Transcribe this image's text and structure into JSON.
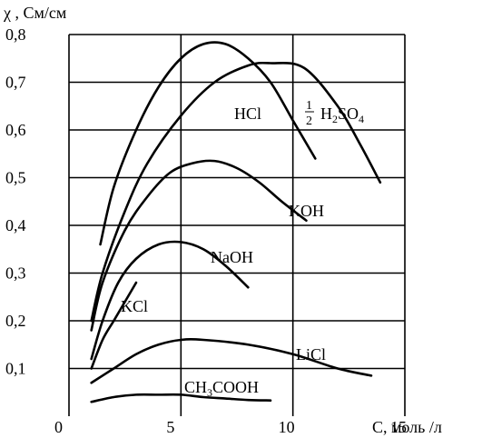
{
  "chart_data": {
    "type": "line",
    "ylabel": "χ , См/см",
    "xlabel": "C, моль /л",
    "xlim": [
      0,
      15
    ],
    "ylim": [
      0,
      0.8
    ],
    "grid": true,
    "x_ticks": [
      "0",
      "5",
      "10",
      "15"
    ],
    "y_ticks": [
      "0,1",
      "0,2",
      "0,3",
      "0,4",
      "0,5",
      "0,6",
      "0,7",
      "0,8"
    ],
    "series": [
      {
        "name": "HCl",
        "x": [
          1.4,
          2.0,
          3.0,
          4.0,
          5.0,
          6.0,
          7.0,
          8.0,
          9.0,
          10.0,
          11.0
        ],
        "y": [
          0.36,
          0.48,
          0.6,
          0.69,
          0.75,
          0.78,
          0.78,
          0.75,
          0.7,
          0.62,
          0.54
        ]
      },
      {
        "name": "½ H₂SO₄",
        "x": [
          1.0,
          1.5,
          2.5,
          3.5,
          5.0,
          6.5,
          8.0,
          9.0,
          10.5,
          12.0,
          13.0,
          13.9
        ],
        "y": [
          0.2,
          0.3,
          0.43,
          0.53,
          0.63,
          0.7,
          0.735,
          0.74,
          0.73,
          0.65,
          0.57,
          0.49
        ]
      },
      {
        "name": "KOH",
        "x": [
          1.0,
          1.5,
          2.5,
          3.5,
          4.5,
          5.5,
          6.5,
          7.5,
          8.5,
          9.5,
          10.6
        ],
        "y": [
          0.18,
          0.28,
          0.39,
          0.46,
          0.51,
          0.53,
          0.535,
          0.52,
          0.49,
          0.45,
          0.41
        ]
      },
      {
        "name": "NaOH",
        "x": [
          1.0,
          1.5,
          2.2,
          3.0,
          4.0,
          5.0,
          6.0,
          7.0,
          8.0
        ],
        "y": [
          0.12,
          0.2,
          0.28,
          0.33,
          0.36,
          0.365,
          0.35,
          0.315,
          0.27
        ]
      },
      {
        "name": "KCl",
        "x": [
          1.0,
          1.5,
          2.0,
          2.5,
          3.0
        ],
        "y": [
          0.1,
          0.16,
          0.2,
          0.24,
          0.28
        ]
      },
      {
        "name": "LiCl",
        "x": [
          1.0,
          2.0,
          3.0,
          4.0,
          5.0,
          6.0,
          8.0,
          10.0,
          12.0,
          13.5
        ],
        "y": [
          0.07,
          0.1,
          0.13,
          0.15,
          0.16,
          0.16,
          0.15,
          0.13,
          0.1,
          0.085
        ]
      },
      {
        "name": "CH₃COOH",
        "x": [
          1.0,
          2.0,
          3.0,
          4.0,
          5.0,
          6.0,
          7.0,
          8.0,
          9.0
        ],
        "y": [
          0.03,
          0.04,
          0.045,
          0.045,
          0.045,
          0.04,
          0.037,
          0.034,
          0.033
        ]
      }
    ]
  }
}
